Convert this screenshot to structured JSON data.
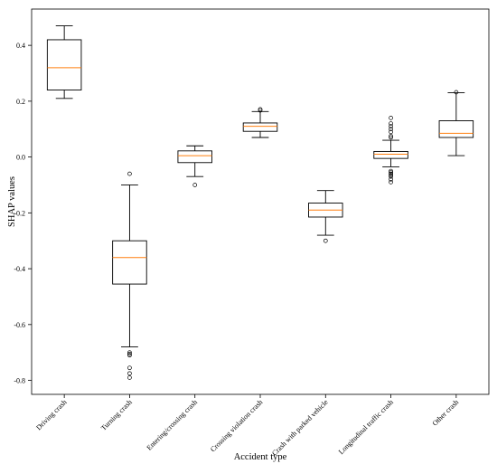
{
  "chart_data": {
    "type": "boxplot",
    "xlabel": "Accident type",
    "ylabel": "SHAP values",
    "ylim": [
      -0.85,
      0.53
    ],
    "yticks": [
      -0.8,
      -0.6,
      -0.4,
      -0.2,
      0.0,
      0.2,
      0.4
    ],
    "ytick_labels": [
      "-0.8",
      "-0.6",
      "-0.4",
      "-0.2",
      "0.0",
      "0.2",
      "0.4"
    ],
    "grid": false,
    "box_color": "#000000",
    "median_color": "#ff7f0e",
    "categories": [
      "Driving crash",
      "Turning crash",
      "Entering/crossing crash",
      "Crossing violation crash",
      "Crash with parked vehicle",
      "Longitudinal traffic crash",
      "Other crash"
    ],
    "boxes": [
      {
        "whisker_low": 0.21,
        "q1": 0.24,
        "median": 0.32,
        "q3": 0.42,
        "whisker_high": 0.47,
        "outliers": []
      },
      {
        "whisker_low": -0.68,
        "q1": -0.455,
        "median": -0.36,
        "q3": -0.3,
        "whisker_high": -0.1,
        "outliers": [
          -0.06,
          -0.7,
          -0.705,
          -0.71,
          -0.755,
          -0.775,
          -0.79
        ]
      },
      {
        "whisker_low": -0.07,
        "q1": -0.02,
        "median": 0.005,
        "q3": 0.022,
        "whisker_high": 0.04,
        "outliers": [
          -0.1
        ]
      },
      {
        "whisker_low": 0.07,
        "q1": 0.092,
        "median": 0.11,
        "q3": 0.122,
        "whisker_high": 0.163,
        "outliers": [
          0.167,
          0.171
        ]
      },
      {
        "whisker_low": -0.28,
        "q1": -0.215,
        "median": -0.19,
        "q3": -0.165,
        "whisker_high": -0.12,
        "outliers": [
          -0.3
        ]
      },
      {
        "whisker_low": -0.035,
        "q1": -0.005,
        "median": 0.01,
        "q3": 0.02,
        "whisker_high": 0.06,
        "outliers": [
          0.07,
          0.075,
          0.09,
          0.1,
          0.11,
          0.12,
          0.14,
          -0.05,
          -0.055,
          -0.06,
          -0.065,
          -0.07,
          -0.08,
          -0.09
        ]
      },
      {
        "whisker_low": 0.005,
        "q1": 0.07,
        "median": 0.085,
        "q3": 0.13,
        "whisker_high": 0.23,
        "outliers": [
          0.232
        ]
      }
    ]
  }
}
